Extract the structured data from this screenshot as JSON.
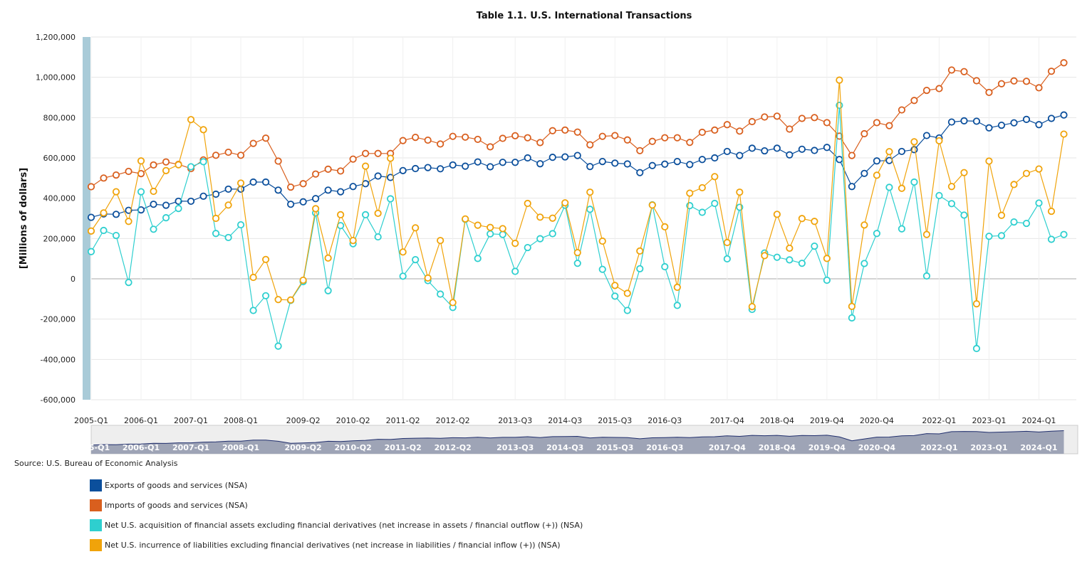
{
  "source_text": "Source: U.S. Bureau of Economic Analysis",
  "colors": {
    "exports": "#0b4f9c",
    "imports": "#d95f1e",
    "assets": "#2ecfcf",
    "liabilities": "#f0a30a",
    "navigator_fill": "#9ea4b6",
    "navigator_line": "#22306e",
    "scrollbar": "#a9cbd8"
  },
  "chart_data": {
    "type": "line",
    "title": "Table 1.1. U.S. International Transactions",
    "ylabel": "[Millions of dollars]",
    "xlabel": "",
    "ylim": [
      -600000,
      1200000
    ],
    "yticks": [
      "1,200,000",
      "1,000,000",
      "800,000",
      "600,000",
      "400,000",
      "200,000",
      "0",
      "-200,000",
      "-400,000",
      "-600,000"
    ],
    "xticks": [
      "2005-Q1",
      "2006-Q1",
      "2007-Q1",
      "2008-Q1",
      "2009-Q2",
      "2010-Q2",
      "2011-Q2",
      "2012-Q2",
      "2013-Q3",
      "2014-Q3",
      "2015-Q3",
      "2016-Q3",
      "2017-Q4",
      "2018-Q4",
      "2019-Q4",
      "2020-Q4",
      "2022-Q1",
      "2023-Q1",
      "2024-Q1"
    ],
    "x_start": "2005-Q1",
    "x_end": "2024-Q4",
    "grid": true,
    "legend_position": "bottom",
    "series": [
      {
        "name": "Exports of goods and services (NSA)",
        "values": [
          305000,
          322000,
          320000,
          340000,
          342000,
          370000,
          365000,
          385000,
          385000,
          410000,
          420000,
          445000,
          445000,
          480000,
          480000,
          440000,
          370000,
          382000,
          398000,
          440000,
          432000,
          458000,
          472000,
          510000,
          503000,
          537000,
          547000,
          552000,
          546000,
          565000,
          559000,
          580000,
          556000,
          578000,
          578000,
          600000,
          571000,
          603000,
          605000,
          612000,
          557000,
          582000,
          574000,
          570000,
          527000,
          562000,
          569000,
          582000,
          567000,
          592000,
          600000,
          632000,
          612000,
          648000,
          635000,
          648000,
          615000,
          643000,
          637000,
          652000,
          592000,
          458000,
          523000,
          585000,
          587000,
          632000,
          641000,
          711000,
          699000,
          778000,
          784000,
          782000,
          749000,
          762000,
          774000,
          791000,
          765000,
          796000,
          813000
        ]
      },
      {
        "name": "Imports of goods and services (NSA)",
        "values": [
          457000,
          500000,
          515000,
          533000,
          522000,
          565000,
          580000,
          568000,
          547000,
          590000,
          613000,
          628000,
          613000,
          672000,
          698000,
          584000,
          455000,
          472000,
          520000,
          544000,
          535000,
          594000,
          622000,
          622000,
          622000,
          686000,
          702000,
          688000,
          669000,
          707000,
          703000,
          692000,
          655000,
          697000,
          710000,
          700000,
          676000,
          735000,
          738000,
          728000,
          665000,
          707000,
          711000,
          689000,
          636000,
          682000,
          700000,
          700000,
          677000,
          727000,
          738000,
          765000,
          733000,
          780000,
          803000,
          807000,
          743000,
          796000,
          800000,
          775000,
          708000,
          612000,
          720000,
          775000,
          760000,
          838000,
          885000,
          935000,
          944000,
          1036000,
          1028000,
          983000,
          925000,
          968000,
          982000,
          980000,
          948000,
          1030000,
          1072000
        ]
      },
      {
        "name": "Net U.S. acquisition of financial assets excluding financial derivatives (net increase in assets / financial outflow (+)) (NSA)",
        "values": [
          135000,
          240000,
          215000,
          -18000,
          432000,
          246000,
          303000,
          349000,
          556000,
          581000,
          225000,
          205000,
          268000,
          -157000,
          -84000,
          -334000,
          -107000,
          -14000,
          327000,
          -59000,
          264000,
          174000,
          318000,
          208000,
          397000,
          13000,
          95000,
          -9000,
          -76000,
          -142000,
          295000,
          101000,
          223000,
          220000,
          37000,
          155000,
          199000,
          224000,
          365000,
          77000,
          345000,
          47000,
          -86000,
          -157000,
          50000,
          367000,
          60000,
          -132000,
          363000,
          330000,
          374000,
          99000,
          355000,
          -152000,
          128000,
          107000,
          94000,
          77000,
          162000,
          -7000,
          861000,
          -194000,
          76000,
          225000,
          454000,
          248000,
          480000,
          14000,
          413000,
          373000,
          316000,
          -346000,
          211000,
          214000,
          282000,
          275000,
          376000,
          196000,
          220000
        ]
      },
      {
        "name": "Net U.S. incurrence of liabilities excluding financial derivatives (net increase in liabilities / financial inflow (+)) (NSA)",
        "values": [
          237000,
          327000,
          432000,
          285000,
          585000,
          434000,
          537000,
          566000,
          790000,
          740000,
          300000,
          366000,
          475000,
          7000,
          96000,
          -103000,
          -105000,
          -7000,
          348000,
          103000,
          318000,
          190000,
          559000,
          325000,
          598000,
          133000,
          253000,
          4000,
          190000,
          -118000,
          297000,
          266000,
          255000,
          249000,
          176000,
          374000,
          306000,
          301000,
          377000,
          130000,
          430000,
          187000,
          -33000,
          -72000,
          138000,
          366000,
          258000,
          -42000,
          425000,
          452000,
          507000,
          180000,
          430000,
          -138000,
          115000,
          320000,
          152000,
          299000,
          285000,
          101000,
          986000,
          -137000,
          267000,
          514000,
          631000,
          449000,
          680000,
          220000,
          685000,
          458000,
          527000,
          -124000,
          584000,
          315000,
          468000,
          523000,
          545000,
          335000,
          718000
        ]
      }
    ]
  }
}
